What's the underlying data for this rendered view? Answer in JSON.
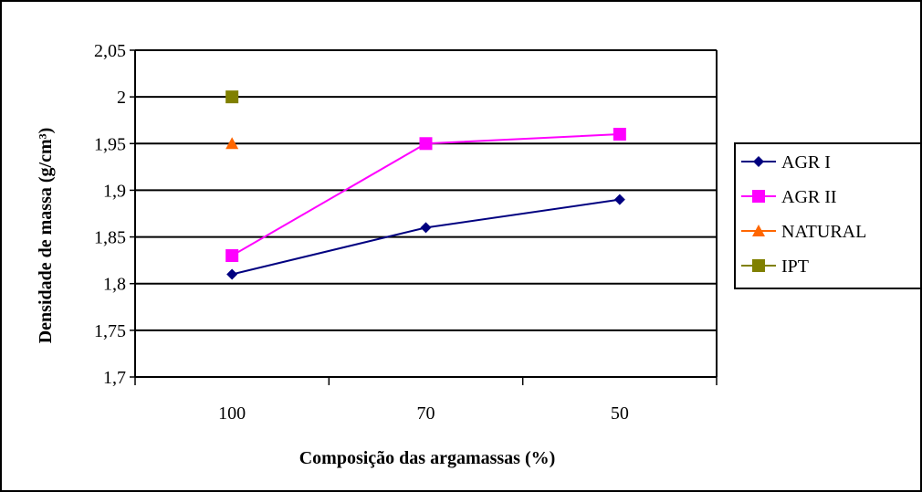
{
  "chart_data": {
    "type": "line",
    "title": "",
    "xlabel": "Composição das argamassas (%)",
    "ylabel": "Densidade de massa (g/cm³)",
    "categories": [
      "100",
      "70",
      "50"
    ],
    "y_ticks": [
      "1,7",
      "1,75",
      "1,8",
      "1,85",
      "1,9",
      "1,95",
      "2",
      "2,05"
    ],
    "ylim": [
      1.7,
      2.05
    ],
    "grid": true,
    "legend_position": "right",
    "series": [
      {
        "name": "AGR I",
        "values": [
          1.81,
          1.86,
          1.89
        ],
        "color": "#000080",
        "marker": "diamond"
      },
      {
        "name": "AGR II",
        "values": [
          1.83,
          1.95,
          1.96
        ],
        "color": "#FF00FF",
        "marker": "square"
      },
      {
        "name": "NATURAL",
        "values": [
          1.95,
          null,
          null
        ],
        "color": "#FF6600",
        "marker": "triangle"
      },
      {
        "name": "IPT",
        "values": [
          2.0,
          null,
          null
        ],
        "color": "#808000",
        "marker": "square"
      }
    ]
  }
}
